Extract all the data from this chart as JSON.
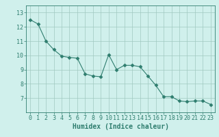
{
  "x": [
    0,
    1,
    2,
    3,
    4,
    5,
    6,
    7,
    8,
    9,
    10,
    11,
    12,
    13,
    14,
    15,
    16,
    17,
    18,
    19,
    20,
    21,
    22,
    23
  ],
  "y": [
    12.5,
    12.2,
    11.0,
    10.4,
    9.95,
    9.85,
    9.8,
    8.7,
    8.55,
    8.5,
    10.05,
    9.0,
    9.3,
    9.3,
    9.2,
    8.55,
    7.9,
    7.1,
    7.1,
    6.8,
    6.75,
    6.8,
    6.8,
    6.55
  ],
  "line_color": "#2e7d6e",
  "marker": "D",
  "marker_size": 2.5,
  "bg_color": "#d0f0ec",
  "grid_color": "#a0c8c0",
  "xlabel": "Humidex (Indice chaleur)",
  "xlabel_fontsize": 7,
  "tick_fontsize": 6,
  "ylim": [
    6.0,
    13.5
  ],
  "xlim": [
    -0.5,
    23.5
  ],
  "yticks": [
    7,
    8,
    9,
    10,
    11,
    12,
    13
  ],
  "xticks": [
    0,
    1,
    2,
    3,
    4,
    5,
    6,
    7,
    8,
    9,
    10,
    11,
    12,
    13,
    14,
    15,
    16,
    17,
    18,
    19,
    20,
    21,
    22,
    23
  ]
}
